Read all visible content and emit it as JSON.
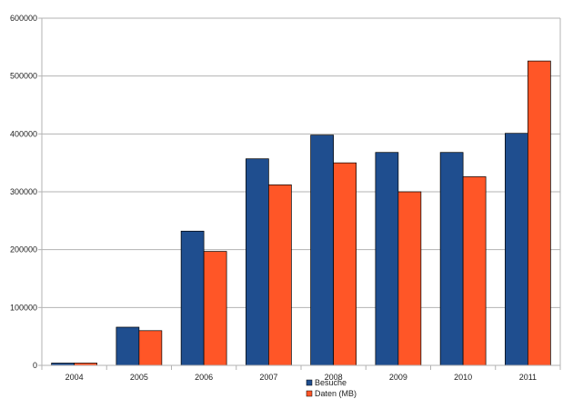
{
  "chart_data": {
    "type": "bar",
    "categories": [
      "2004",
      "2005",
      "2006",
      "2007",
      "2008",
      "2009",
      "2010",
      "2011"
    ],
    "series": [
      {
        "name": "Besuche",
        "color": "#1f4e8f",
        "values": [
          4000,
          66000,
          232000,
          357000,
          398000,
          368000,
          368000,
          401000
        ]
      },
      {
        "name": "Daten (MB)",
        "color": "#ff5627",
        "values": [
          4000,
          60000,
          197000,
          312000,
          350000,
          300000,
          326000,
          526000
        ]
      }
    ],
    "y_ticks": [
      "0",
      "100000",
      "200000",
      "300000",
      "400000",
      "500000",
      "600000"
    ],
    "ylim": [
      0,
      600000
    ],
    "grid": true,
    "legend_position": "bottom-center"
  }
}
